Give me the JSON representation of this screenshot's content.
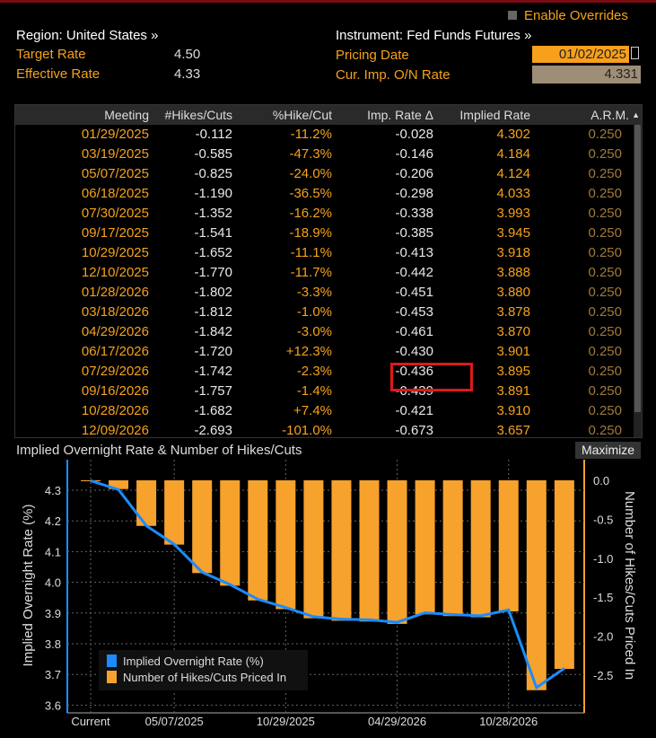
{
  "header": {
    "enable_overrides": "Enable Overrides",
    "region": "Region: United States »",
    "instrument": "Instrument: Fed Funds Futures »",
    "target_rate_label": "Target Rate",
    "target_rate": "4.50",
    "effective_rate_label": "Effective Rate",
    "effective_rate": "4.33",
    "pricing_date_label": "Pricing Date",
    "pricing_date": "01/02/2025",
    "cur_rate_label": "Cur. Imp. O/N Rate",
    "cur_rate": "4.331"
  },
  "table": {
    "columns": [
      "Meeting",
      "#Hikes/Cuts",
      "%Hike/Cut",
      "Imp. Rate Δ",
      "Implied Rate",
      "A.R.M."
    ],
    "rows": [
      [
        "01/29/2025",
        "-0.112",
        "-11.2%",
        "-0.028",
        "4.302",
        "0.250"
      ],
      [
        "03/19/2025",
        "-0.585",
        "-47.3%",
        "-0.146",
        "4.184",
        "0.250"
      ],
      [
        "05/07/2025",
        "-0.825",
        "-24.0%",
        "-0.206",
        "4.124",
        "0.250"
      ],
      [
        "06/18/2025",
        "-1.190",
        "-36.5%",
        "-0.298",
        "4.033",
        "0.250"
      ],
      [
        "07/30/2025",
        "-1.352",
        "-16.2%",
        "-0.338",
        "3.993",
        "0.250"
      ],
      [
        "09/17/2025",
        "-1.541",
        "-18.9%",
        "-0.385",
        "3.945",
        "0.250"
      ],
      [
        "10/29/2025",
        "-1.652",
        "-11.1%",
        "-0.413",
        "3.918",
        "0.250"
      ],
      [
        "12/10/2025",
        "-1.770",
        "-11.7%",
        "-0.442",
        "3.888",
        "0.250"
      ],
      [
        "01/28/2026",
        "-1.802",
        "-3.3%",
        "-0.451",
        "3.880",
        "0.250"
      ],
      [
        "03/18/2026",
        "-1.812",
        "-1.0%",
        "-0.453",
        "3.878",
        "0.250"
      ],
      [
        "04/29/2026",
        "-1.842",
        "-3.0%",
        "-0.461",
        "3.870",
        "0.250"
      ],
      [
        "06/17/2026",
        "-1.720",
        "+12.3%",
        "-0.430",
        "3.901",
        "0.250"
      ],
      [
        "07/29/2026",
        "-1.742",
        "-2.3%",
        "-0.436",
        "3.895",
        "0.250"
      ],
      [
        "09/16/2026",
        "-1.757",
        "-1.4%",
        "-0.439",
        "3.891",
        "0.250"
      ],
      [
        "10/28/2026",
        "-1.682",
        "+7.4%",
        "-0.421",
        "3.910",
        "0.250"
      ],
      [
        "12/09/2026",
        "-2.693",
        "-101.0%",
        "-0.673",
        "3.657",
        "0.250"
      ]
    ]
  },
  "chart_data": {
    "type": "bar",
    "title": "Implied Overnight Rate & Number of Hikes/Cuts",
    "maximize": "Maximize",
    "ylabel": "Implied Overnight Rate (%)",
    "y2label": "Number of Hikes/Cuts Priced In",
    "ylim": [
      3.6,
      4.35
    ],
    "y2lim": [
      -2.9,
      0.25
    ],
    "yticks": [
      "4.3",
      "4.2",
      "4.1",
      "4.0",
      "3.9",
      "3.8",
      "3.7",
      "3.6"
    ],
    "y2ticks": [
      "0.0",
      "-0.5",
      "-1.0",
      "-1.5",
      "-2.0",
      "-2.5"
    ],
    "xticks": [
      "Current",
      "05/07/2025",
      "10/29/2025",
      "04/29/2026",
      "10/28/2026"
    ],
    "xtick_index": [
      0,
      3,
      7,
      11,
      15
    ],
    "grid": true,
    "legend": "bottom-left",
    "series": [
      {
        "name": "Implied Overnight Rate (%)",
        "type": "line",
        "color": "#1a8cff",
        "values": [
          4.331,
          4.302,
          4.184,
          4.124,
          4.033,
          3.993,
          3.945,
          3.918,
          3.888,
          3.88,
          3.878,
          3.87,
          3.901,
          3.895,
          3.891,
          3.91,
          3.657,
          3.72
        ]
      },
      {
        "name": "Number of Hikes/Cuts Priced In",
        "type": "bar",
        "color": "#f7a22c",
        "values": [
          0,
          -0.112,
          -0.585,
          -0.825,
          -1.19,
          -1.352,
          -1.541,
          -1.652,
          -1.77,
          -1.802,
          -1.812,
          -1.842,
          -1.72,
          -1.742,
          -1.757,
          -1.682,
          -2.693,
          -2.42
        ]
      }
    ]
  }
}
